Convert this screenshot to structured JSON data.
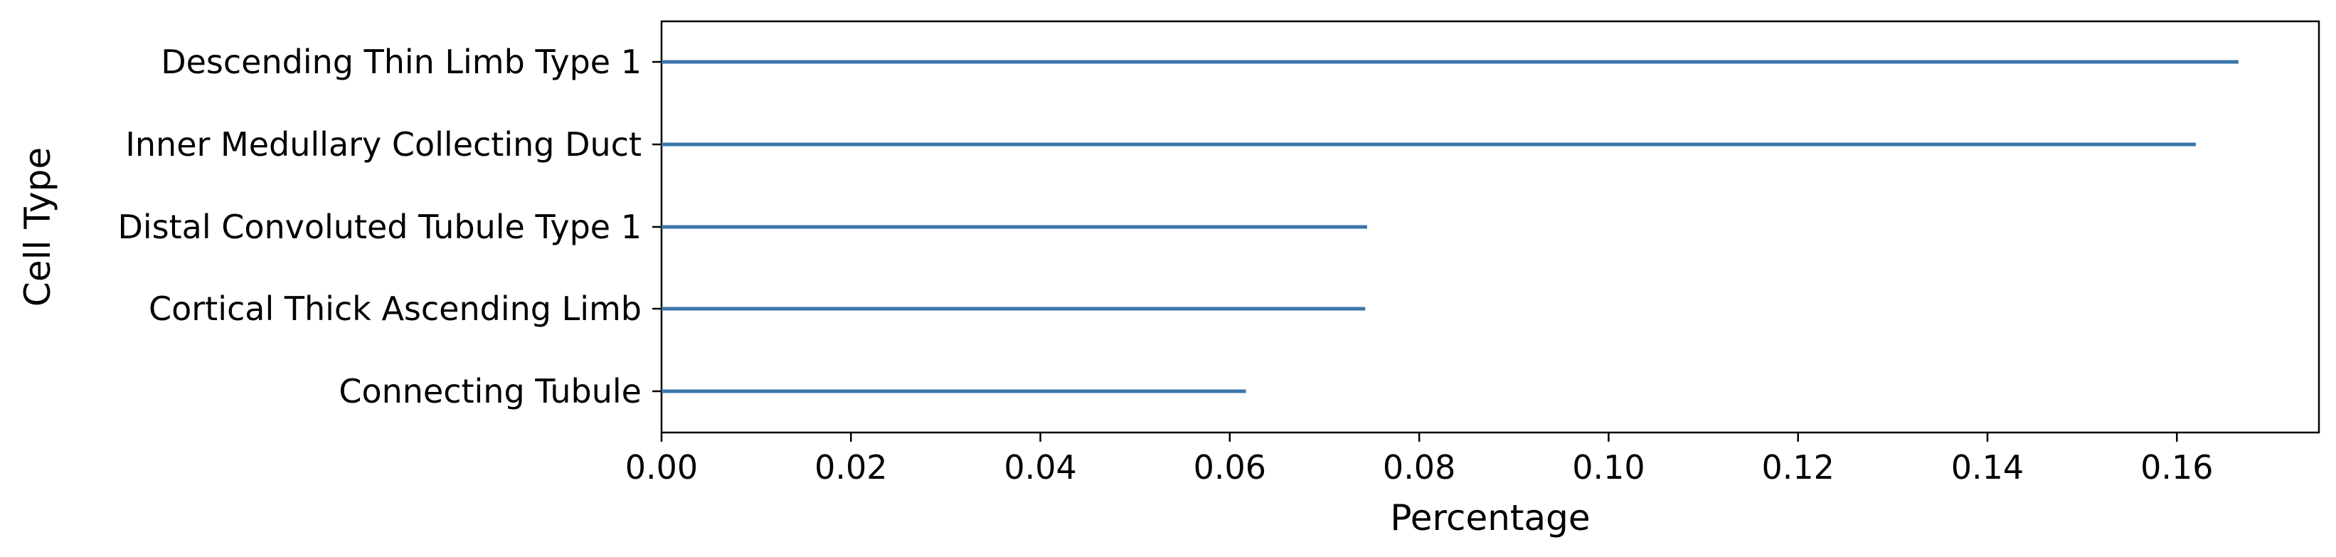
{
  "chart_data": {
    "type": "bar",
    "orientation": "horizontal",
    "categories": [
      "Descending Thin Limb Type 1",
      "Inner Medullary Collecting Duct",
      "Distal Convoluted Tubule Type 1",
      "Cortical Thick Ascending Limb",
      "Connecting Tubule"
    ],
    "values": [
      0.1665,
      0.162,
      0.0745,
      0.0743,
      0.0617
    ],
    "xlabel": "Percentage",
    "ylabel": "Cell Type",
    "xlim": [
      0,
      0.175
    ],
    "xticks": [
      0.0,
      0.02,
      0.04,
      0.06,
      0.08,
      0.1,
      0.12,
      0.14,
      0.16
    ],
    "xtick_labels": [
      "0.00",
      "0.02",
      "0.04",
      "0.06",
      "0.08",
      "0.10",
      "0.12",
      "0.14",
      "0.16"
    ],
    "grid": false,
    "legend": "none",
    "colors": {
      "bar": "#3a75a8",
      "axis": "#000000"
    }
  }
}
